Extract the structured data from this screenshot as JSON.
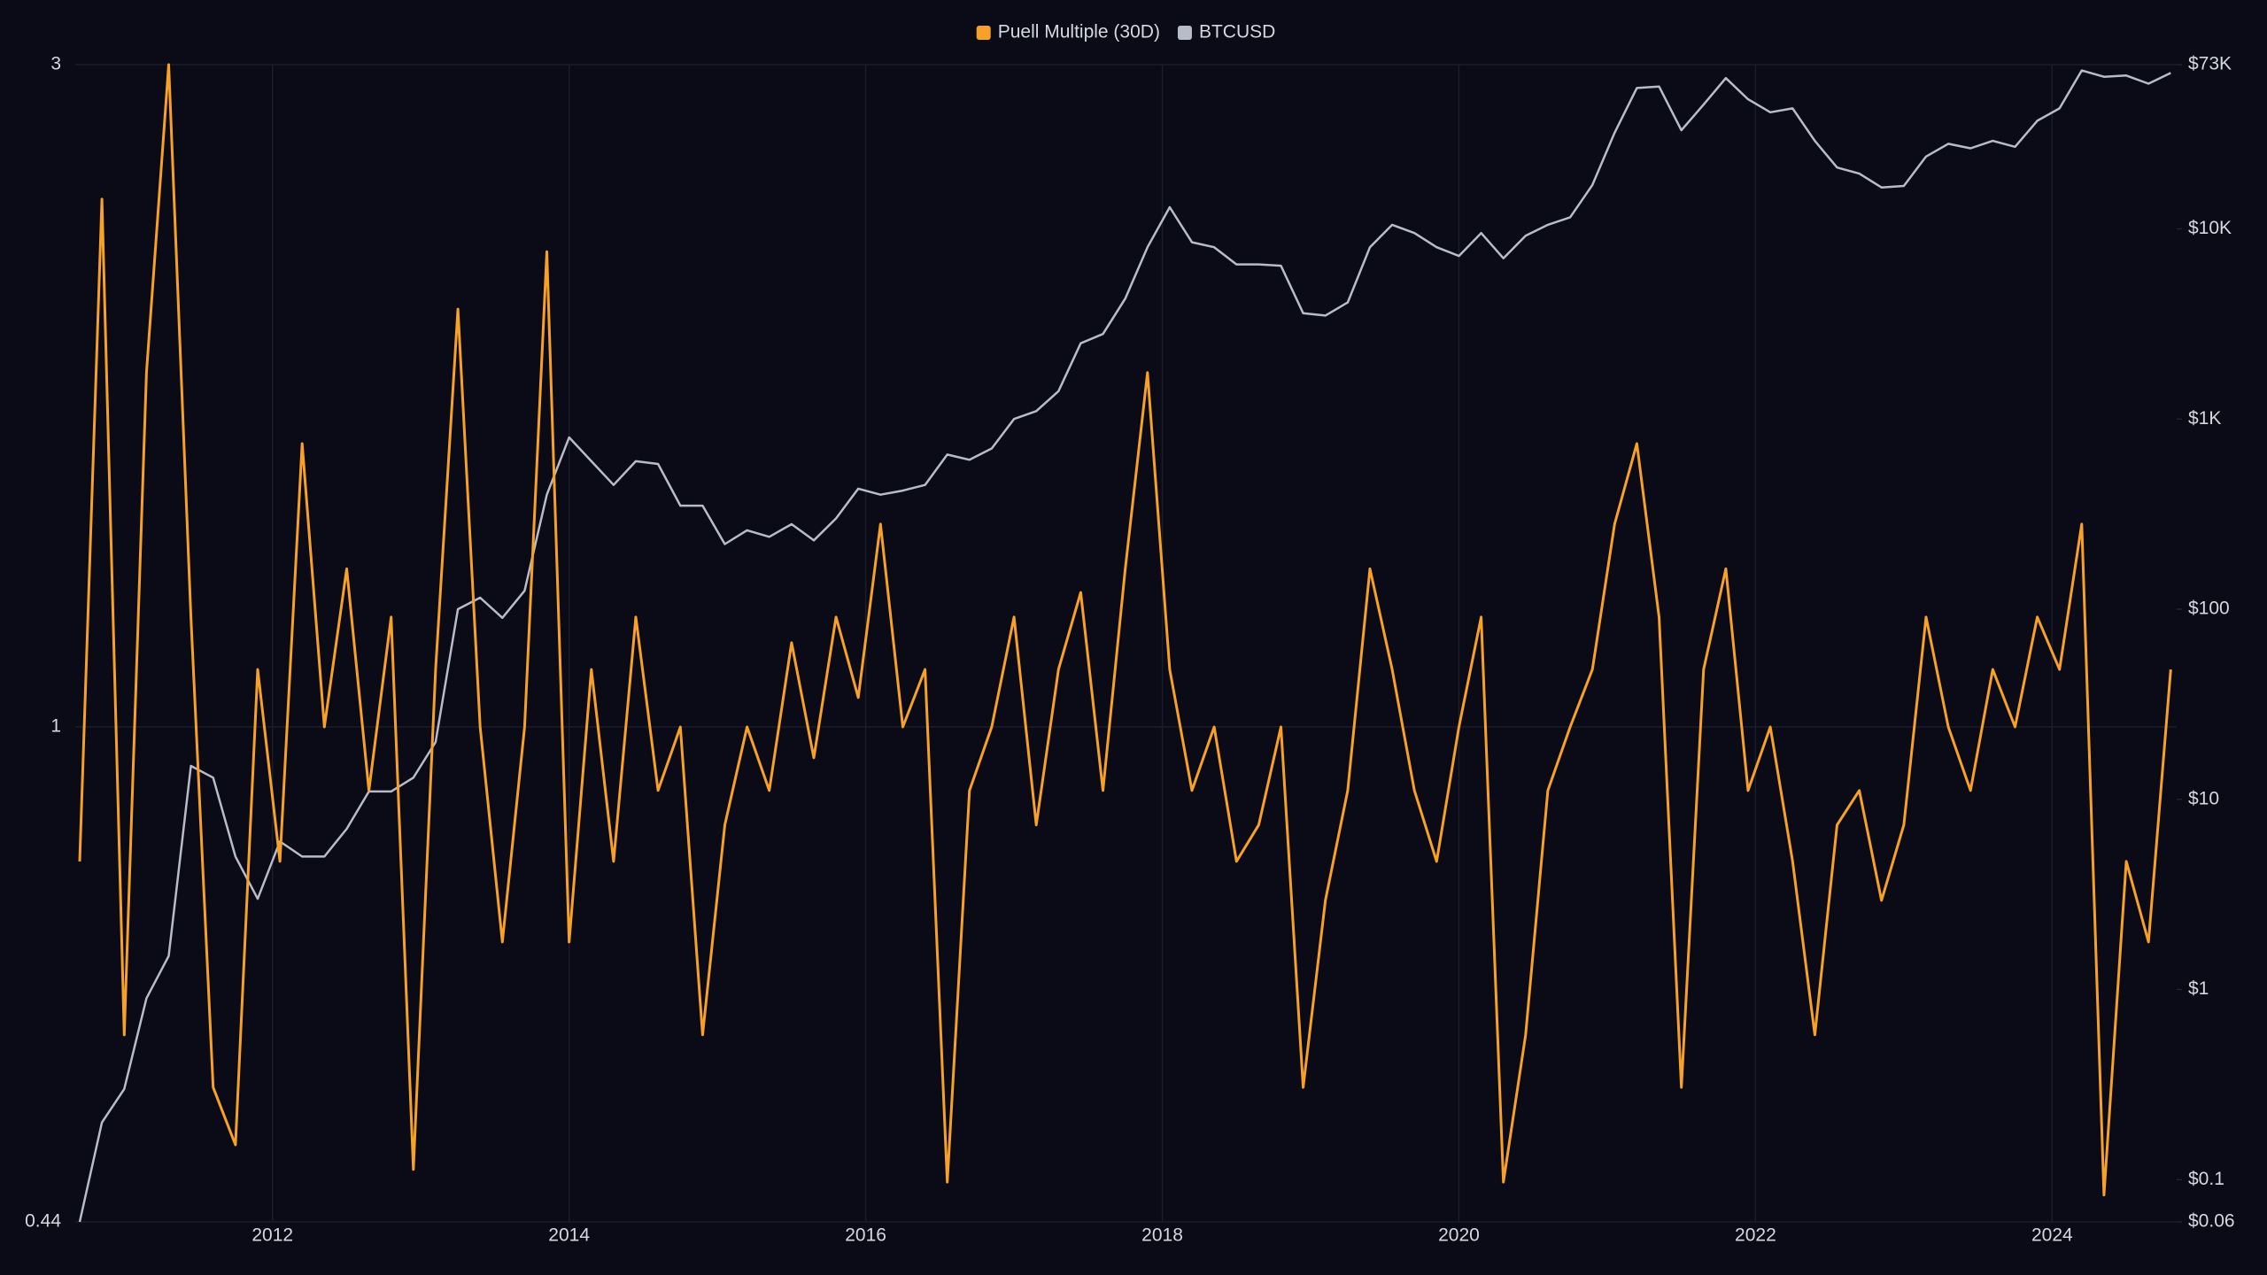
{
  "chart_data": {
    "type": "line",
    "x": [
      2010.7,
      2010.85,
      2011,
      2011.15,
      2011.3,
      2011.45,
      2011.6,
      2011.75,
      2011.9,
      2012.05,
      2012.2,
      2012.35,
      2012.5,
      2012.65,
      2012.8,
      2012.95,
      2013.1,
      2013.25,
      2013.4,
      2013.55,
      2013.7,
      2013.85,
      2014,
      2014.15,
      2014.3,
      2014.45,
      2014.6,
      2014.75,
      2014.9,
      2015.05,
      2015.2,
      2015.35,
      2015.5,
      2015.65,
      2015.8,
      2015.95,
      2016.1,
      2016.25,
      2016.4,
      2016.55,
      2016.7,
      2016.85,
      2017,
      2017.15,
      2017.3,
      2017.45,
      2017.6,
      2017.75,
      2017.9,
      2018.05,
      2018.2,
      2018.35,
      2018.5,
      2018.65,
      2018.8,
      2018.95,
      2019.1,
      2019.25,
      2019.4,
      2019.55,
      2019.7,
      2019.85,
      2020,
      2020.15,
      2020.3,
      2020.45,
      2020.6,
      2020.75,
      2020.9,
      2021.05,
      2021.2,
      2021.35,
      2021.5,
      2021.65,
      2021.8,
      2021.95,
      2022.1,
      2022.25,
      2022.4,
      2022.55,
      2022.7,
      2022.85,
      2023,
      2023.15,
      2023.3,
      2023.45,
      2023.6,
      2023.75,
      2023.9,
      2024.05,
      2024.2,
      2024.35,
      2024.5,
      2024.65,
      2024.8
    ],
    "series": [
      {
        "name": "Puell Multiple (30D)",
        "color": "#f7a128",
        "values": [
          0.8,
          2.4,
          0.6,
          1.8,
          3.0,
          1.2,
          0.55,
          0.5,
          1.1,
          0.8,
          1.6,
          1.0,
          1.3,
          0.9,
          1.2,
          0.48,
          1.1,
          2.0,
          1.0,
          0.7,
          1.0,
          2.2,
          0.7,
          1.1,
          0.8,
          1.2,
          0.9,
          1.0,
          0.6,
          0.85,
          1.0,
          0.9,
          1.15,
          0.95,
          1.2,
          1.05,
          1.4,
          1.0,
          1.1,
          0.47,
          0.9,
          1.0,
          1.2,
          0.85,
          1.1,
          1.25,
          0.9,
          1.3,
          1.8,
          1.1,
          0.9,
          1.0,
          0.8,
          0.85,
          1.0,
          0.55,
          0.75,
          0.9,
          1.3,
          1.1,
          0.9,
          0.8,
          1.0,
          1.2,
          0.47,
          0.6,
          0.9,
          1.0,
          1.1,
          1.4,
          1.6,
          1.2,
          0.55,
          1.1,
          1.3,
          0.9,
          1.0,
          0.8,
          0.6,
          0.85,
          0.9,
          0.75,
          0.85,
          1.2,
          1.0,
          0.9,
          1.1,
          1.0,
          1.2,
          1.1,
          1.4,
          0.46,
          0.8,
          0.7,
          1.1
        ]
      },
      {
        "name": "BTCUSD",
        "color": "#b8bcc8",
        "axis": "y2",
        "values": [
          0.06,
          0.2,
          0.3,
          0.9,
          1.5,
          15,
          13,
          5,
          3,
          6,
          5,
          5,
          7,
          11,
          11,
          13,
          20,
          100,
          115,
          90,
          125,
          400,
          800,
          600,
          450,
          600,
          580,
          350,
          350,
          220,
          260,
          240,
          280,
          230,
          300,
          430,
          400,
          420,
          450,
          650,
          610,
          700,
          1000,
          1100,
          1400,
          2500,
          2800,
          4300,
          8000,
          13000,
          8500,
          8000,
          6500,
          6500,
          6400,
          3600,
          3500,
          4100,
          8000,
          10500,
          9500,
          8000,
          7200,
          9500,
          7000,
          9200,
          10500,
          11500,
          17000,
          32000,
          55000,
          56000,
          33000,
          45000,
          62000,
          48000,
          41000,
          43000,
          29000,
          21000,
          19500,
          16500,
          16800,
          24000,
          28000,
          26500,
          29000,
          27000,
          37000,
          43000,
          68000,
          63000,
          64000,
          58000,
          66000
        ]
      }
    ],
    "xlim": [
      2010.67,
      2024.84
    ],
    "xticks": [
      2012,
      2014,
      2016,
      2018,
      2020,
      2022,
      2024
    ],
    "ylim": [
      0.44,
      3
    ],
    "yticks": [
      0.44,
      1,
      3
    ],
    "y2lim": [
      0.06,
      73000
    ],
    "y2ticks": [
      {
        "value": 0.06,
        "label": "$0.06"
      },
      {
        "value": 0.1,
        "label": "$0.1"
      },
      {
        "value": 1,
        "label": "$1"
      },
      {
        "value": 10,
        "label": "$10"
      },
      {
        "value": 100,
        "label": "$100"
      },
      {
        "value": 1000,
        "label": "$1K"
      },
      {
        "value": 10000,
        "label": "$10K"
      },
      {
        "value": 73000,
        "label": "$73K"
      }
    ],
    "log_scale": true,
    "grid": true,
    "legend": "top"
  }
}
